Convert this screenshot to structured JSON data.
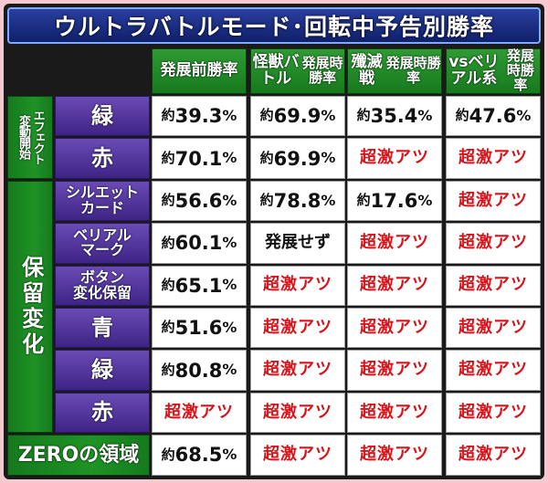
{
  "title": "ウルトラバトルモード･回転中予告別勝率",
  "headers": [
    [
      "発展前",
      "勝率"
    ],
    [
      "怪獣バトル",
      "発展時勝率"
    ],
    [
      "殲滅戦",
      "発展時勝率"
    ],
    [
      "vsベリアル系",
      "発展時勝率"
    ]
  ],
  "groups": {
    "effect_col1": "変動開始",
    "effect_col2": "エフェクト",
    "hold": "保留変化"
  },
  "rows": [
    {
      "label": "緑",
      "cells": [
        "約39.3%",
        "約69.9%",
        "約35.4%",
        "約47.6%"
      ]
    },
    {
      "label": "赤",
      "cells": [
        "約70.1%",
        "約69.9%",
        "超激アツ",
        "超激アツ"
      ]
    },
    {
      "label": [
        "シルエット",
        "カード"
      ],
      "cells": [
        "約56.6%",
        "約78.8%",
        "約17.6%",
        "超激アツ"
      ]
    },
    {
      "label": [
        "ベリアル",
        "マーク"
      ],
      "cells": [
        "約60.1%",
        "発展せず",
        "超激アツ",
        "超激アツ"
      ]
    },
    {
      "label": [
        "ボタン",
        "変化保留"
      ],
      "cells": [
        "約65.1%",
        "超激アツ",
        "超激アツ",
        "超激アツ"
      ]
    },
    {
      "label": "青",
      "cells": [
        "約51.6%",
        "超激アツ",
        "超激アツ",
        "超激アツ"
      ]
    },
    {
      "label": "緑",
      "cells": [
        "約80.8%",
        "超激アツ",
        "超激アツ",
        "超激アツ"
      ]
    },
    {
      "label": "赤",
      "cells": [
        "超激アツ",
        "超激アツ",
        "超激アツ",
        "超激アツ"
      ]
    }
  ],
  "zero_row": {
    "label": "ZEROの領域",
    "cells": [
      "約68.5%",
      "超激アツ",
      "超激アツ",
      "超激アツ"
    ]
  }
}
